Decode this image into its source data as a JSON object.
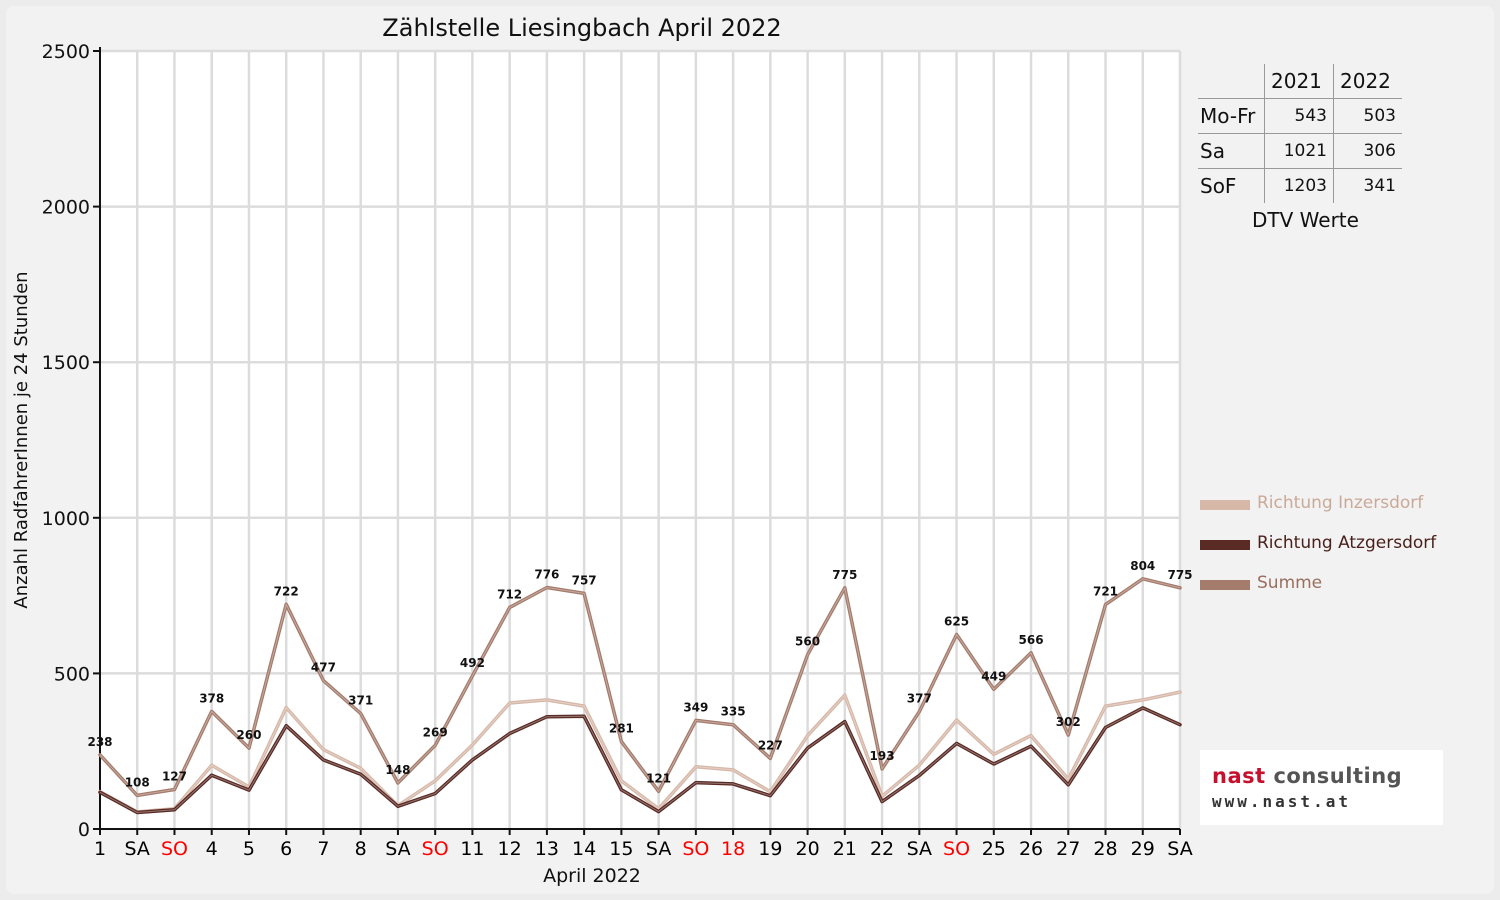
{
  "chart_data": {
    "type": "line",
    "title": "Zählstelle Liesingbach April 2022",
    "xlabel": "April 2022",
    "ylabel": "Anzahl RadfahrerInnen je 24 Stunden",
    "ylim": [
      0,
      2500
    ],
    "yticks": [
      0,
      500,
      1000,
      1500,
      2000,
      2500
    ],
    "grid": true,
    "legend_position": "right",
    "categories": [
      "1",
      "SA",
      "SO",
      "4",
      "5",
      "6",
      "7",
      "8",
      "SA",
      "SO",
      "11",
      "12",
      "13",
      "14",
      "15",
      "SA",
      "SO",
      "18",
      "19",
      "20",
      "21",
      "22",
      "SA",
      "SO",
      "25",
      "26",
      "27",
      "28",
      "29",
      "SA"
    ],
    "category_colors": [
      "#000000",
      "#000000",
      "#ff0000",
      "#000000",
      "#000000",
      "#000000",
      "#000000",
      "#000000",
      "#000000",
      "#ff0000",
      "#000000",
      "#000000",
      "#000000",
      "#000000",
      "#000000",
      "#000000",
      "#ff0000",
      "#ff0000",
      "#000000",
      "#000000",
      "#000000",
      "#000000",
      "#000000",
      "#ff0000",
      "#000000",
      "#000000",
      "#000000",
      "#000000",
      "#000000",
      "#000000"
    ],
    "series": [
      {
        "name": "Richtung Inzersdorf",
        "color": "#d6b7a8",
        "values": [
          120,
          55,
          65,
          205,
          135,
          390,
          255,
          195,
          75,
          155,
          270,
          405,
          415,
          395,
          155,
          65,
          200,
          190,
          120,
          300,
          430,
          105,
          205,
          350,
          240,
          300,
          160,
          395,
          415,
          440
        ]
      },
      {
        "name": "Richtung Atzgersdorf",
        "color": "#5a2a24",
        "values": [
          118,
          53,
          62,
          173,
          125,
          332,
          222,
          176,
          73,
          114,
          222,
          307,
          361,
          362,
          126,
          56,
          149,
          145,
          107,
          260,
          345,
          88,
          172,
          275,
          209,
          266,
          142,
          326,
          389,
          335
        ]
      },
      {
        "name": "Summe",
        "color": "#a57b6c",
        "values": [
          238,
          108,
          127,
          378,
          260,
          722,
          477,
          371,
          148,
          269,
          492,
          712,
          776,
          757,
          281,
          121,
          349,
          335,
          227,
          560,
          775,
          193,
          377,
          625,
          449,
          566,
          302,
          721,
          804,
          775
        ],
        "labels_shown": true
      }
    ]
  },
  "dtv": {
    "caption": "DTV Werte",
    "columns": [
      "2021",
      "2022"
    ],
    "rows": [
      {
        "label": "Mo-Fr",
        "v2021": "543",
        "v2022": "503"
      },
      {
        "label": "Sa",
        "v2021": "1021",
        "v2022": "306"
      },
      {
        "label": "SoF",
        "v2021": "1203",
        "v2022": "341"
      }
    ]
  },
  "logo": {
    "name_part1": "nast",
    "name_part2": " consulting",
    "url": "www.nast.at",
    "accent_color": "#c8102e"
  }
}
